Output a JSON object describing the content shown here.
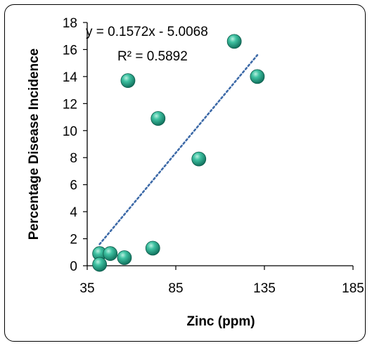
{
  "chart_data": {
    "type": "scatter",
    "xlabel": "Zinc (ppm)",
    "ylabel": "Percentage Disease Incidence",
    "xlim": [
      35,
      185
    ],
    "ylim": [
      0,
      18
    ],
    "xticks": [
      35,
      85,
      135,
      185
    ],
    "yticks": [
      0,
      2,
      4,
      6,
      8,
      10,
      12,
      14,
      16,
      18
    ],
    "series": [
      {
        "points": [
          {
            "x": 42,
            "y": 0.9
          },
          {
            "x": 42,
            "y": 0.1
          },
          {
            "x": 48,
            "y": 0.9
          },
          {
            "x": 56,
            "y": 0.6
          },
          {
            "x": 58,
            "y": 13.7
          },
          {
            "x": 72,
            "y": 1.3
          },
          {
            "x": 75,
            "y": 10.9
          },
          {
            "x": 98,
            "y": 7.9
          },
          {
            "x": 118,
            "y": 16.6
          },
          {
            "x": 131,
            "y": 14.0
          }
        ],
        "color": "#2aa58c"
      }
    ],
    "trendline": {
      "slope": 0.1572,
      "intercept": -5.0068,
      "x_range": [
        42,
        131
      ],
      "color": "#3d6aa8",
      "style": "dotted",
      "equation": "y = 0.1572x - 5.0068",
      "r_squared": "R² = 0.5892"
    },
    "grid": false,
    "legend": "none"
  }
}
